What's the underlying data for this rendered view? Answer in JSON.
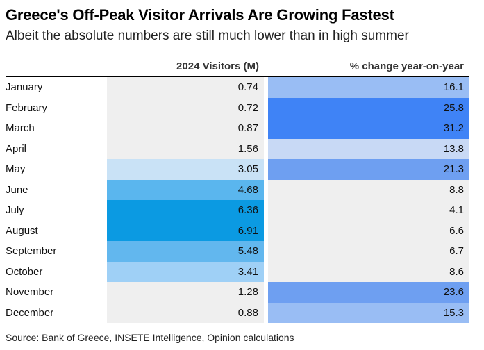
{
  "chart_data": {
    "type": "table",
    "title": "Greece's Off-Peak Visitor Arrivals Are Growing Fastest",
    "subtitle": "Albeit the absolute numbers are still much lower than in high summer",
    "columns": [
      "",
      "2024 Visitors (M)",
      "% change year-on-year"
    ],
    "rows": [
      {
        "month": "January",
        "visitors": "0.74",
        "change": "16.1"
      },
      {
        "month": "February",
        "visitors": "0.72",
        "change": "25.8"
      },
      {
        "month": "March",
        "visitors": "0.87",
        "change": "31.2"
      },
      {
        "month": "April",
        "visitors": "1.56",
        "change": "13.8"
      },
      {
        "month": "May",
        "visitors": "3.05",
        "change": "21.3"
      },
      {
        "month": "June",
        "visitors": "4.68",
        "change": "8.8"
      },
      {
        "month": "July",
        "visitors": "6.36",
        "change": "4.1"
      },
      {
        "month": "August",
        "visitors": "6.91",
        "change": "6.6"
      },
      {
        "month": "September",
        "visitors": "5.48",
        "change": "6.7"
      },
      {
        "month": "October",
        "visitors": "3.41",
        "change": "8.6"
      },
      {
        "month": "November",
        "visitors": "1.28",
        "change": "23.6"
      },
      {
        "month": "December",
        "visitors": "0.88",
        "change": "15.3"
      }
    ],
    "source": "Source: Bank of Greece, INSETE Intelligence, Opinion calculations"
  },
  "colors": {
    "neutral": "#efefef",
    "visitors_scale": {
      "2.5": "#ffffff",
      "3.05": "#c9e2f6",
      "3.41": "#9fd0f6",
      "4.68": "#5ab6ee",
      "5.48": "#62b7ee",
      "6.36": "#0b9ae2",
      "6.91": "#0b9ae2"
    },
    "change_scale": {
      "13.8": "#c8d9f5",
      "15.3": "#99bdf4",
      "16.1": "#99bdf4",
      "21.3": "#6e9ff1",
      "23.6": "#6e9ff1",
      "25.8": "#3f83f6",
      "31.2": "#3f83f6"
    }
  }
}
